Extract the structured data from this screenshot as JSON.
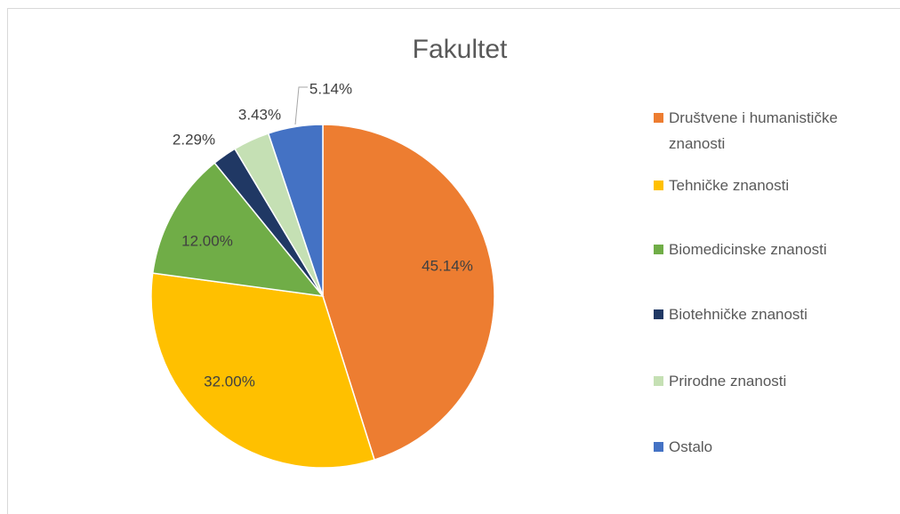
{
  "chart_data": {
    "type": "pie",
    "title": "Fakultet",
    "categories": [
      "Društvene i humanističke znanosti",
      "Tehničke znanosti",
      "Biomedicinske znanosti",
      "Biotehničke znanosti",
      "Prirodne znanosti",
      "Ostalo"
    ],
    "values": [
      45.14,
      32.0,
      12.0,
      2.29,
      3.43,
      5.14
    ],
    "value_labels": [
      "45.14%",
      "32.00%",
      "12.00%",
      "2.29%",
      "3.43%",
      "5.14%"
    ],
    "colors": [
      "#ed7d31",
      "#ffc000",
      "#70ad47",
      "#203864",
      "#c5e0b4",
      "#4472c4"
    ],
    "legend": "right"
  }
}
